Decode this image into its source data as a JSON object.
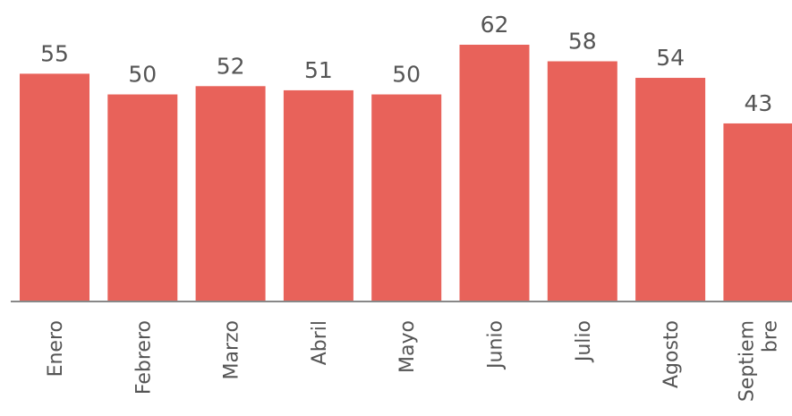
{
  "chart_data": {
    "type": "bar",
    "categories": [
      "Enero",
      "Febrero",
      "Marzo",
      "Abril",
      "Mayo",
      "Junio",
      "Julio",
      "Agosto",
      "Septiembre"
    ],
    "values": [
      55,
      50,
      52,
      51,
      50,
      62,
      58,
      54,
      43
    ],
    "color": "#e8625a"
  }
}
